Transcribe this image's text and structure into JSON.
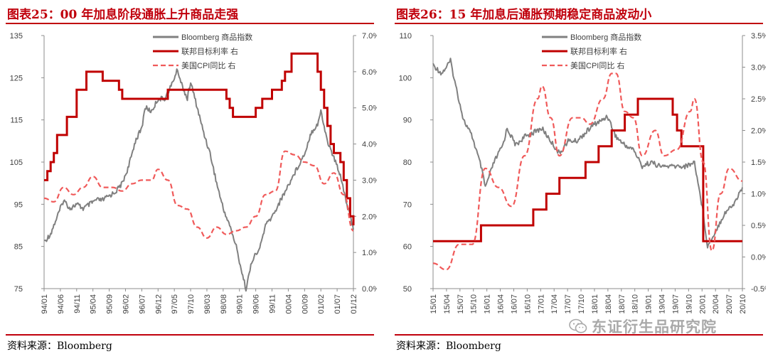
{
  "charts": {
    "left": {
      "title": "图表25：00 年加息阶段通胀上升商品走强",
      "source": "资料来源：Bloomberg"
    },
    "right": {
      "title": "图表26：15 年加息后通胀预期稳定商品波动小",
      "source": "资料来源：Bloomberg"
    }
  },
  "watermark": {
    "text": "东证衍生品研究院",
    "icon": "wechat-icon"
  },
  "colors": {
    "commodity": "#808080",
    "fed_rate": "#c00000",
    "cpi": "#f05a5a",
    "title": "#c0000c"
  },
  "chart_data": [
    {
      "type": "line",
      "title": "图表25：00 年加息阶段通胀上升商品走强",
      "legend_position": "top-center",
      "x_tick_labels": [
        "94/01",
        "94/06",
        "94/11",
        "95/04",
        "95/09",
        "96/02",
        "96/07",
        "96/12",
        "97/05",
        "97/10",
        "98/03",
        "98/08",
        "99/01",
        "99/06",
        "99/11",
        "00/04",
        "00/09",
        "01/02",
        "01/07",
        "01/12"
      ],
      "x_range": [
        "1994-01",
        "2001-12"
      ],
      "y_left": {
        "ticks": [
          "75",
          "85",
          "95",
          "105",
          "115",
          "125",
          "135"
        ],
        "range": [
          75,
          135
        ]
      },
      "y_right": {
        "ticks": [
          "0.0%",
          "1.0%",
          "2.0%",
          "3.0%",
          "4.0%",
          "5.0%",
          "6.0%",
          "7.0%"
        ],
        "range": [
          0,
          7
        ]
      },
      "series": [
        {
          "name": "Bloomberg 商品指数",
          "axis": "left",
          "style": "solid-gray",
          "points": [
            [
              "1994-01",
              86
            ],
            [
              "1994-03",
              88
            ],
            [
              "1994-05",
              92
            ],
            [
              "1994-07",
              96
            ],
            [
              "1994-09",
              94
            ],
            [
              "1994-11",
              95
            ],
            [
              "1995-01",
              94
            ],
            [
              "1995-03",
              95
            ],
            [
              "1995-05",
              96
            ],
            [
              "1995-07",
              96
            ],
            [
              "1995-09",
              97
            ],
            [
              "1995-11",
              98
            ],
            [
              "1996-01",
              100
            ],
            [
              "1996-03",
              104
            ],
            [
              "1996-05",
              110
            ],
            [
              "1996-07",
              113
            ],
            [
              "1996-08",
              118
            ],
            [
              "1996-10",
              117
            ],
            [
              "1996-12",
              120
            ],
            [
              "1997-02",
              120
            ],
            [
              "1997-04",
              123
            ],
            [
              "1997-06",
              127
            ],
            [
              "1997-07",
              124
            ],
            [
              "1997-09",
              120
            ],
            [
              "1997-10",
              124
            ],
            [
              "1997-12",
              118
            ],
            [
              "1998-02",
              112
            ],
            [
              "1998-04",
              107
            ],
            [
              "1998-06",
              100
            ],
            [
              "1998-08",
              94
            ],
            [
              "1998-10",
              90
            ],
            [
              "1998-12",
              85
            ],
            [
              "1999-02",
              78
            ],
            [
              "1999-03",
              75
            ],
            [
              "1999-05",
              82
            ],
            [
              "1999-07",
              84
            ],
            [
              "1999-09",
              90
            ],
            [
              "1999-11",
              92
            ],
            [
              "2000-01",
              95
            ],
            [
              "2000-03",
              98
            ],
            [
              "2000-05",
              101
            ],
            [
              "2000-07",
              104
            ],
            [
              "2000-09",
              107
            ],
            [
              "2000-11",
              112
            ],
            [
              "2001-01",
              114
            ],
            [
              "2001-02",
              117
            ],
            [
              "2001-04",
              110
            ],
            [
              "2001-06",
              106
            ],
            [
              "2001-08",
              102
            ],
            [
              "2001-10",
              95
            ],
            [
              "2001-12",
              89
            ]
          ]
        },
        {
          "name": "联邦目标利率 右",
          "axis": "right",
          "style": "solid-red",
          "step": true,
          "points": [
            [
              "1994-01",
              3.0
            ],
            [
              "1994-02",
              3.25
            ],
            [
              "1994-03",
              3.5
            ],
            [
              "1994-04",
              3.75
            ],
            [
              "1994-05",
              4.25
            ],
            [
              "1994-08",
              4.75
            ],
            [
              "1994-11",
              5.5
            ],
            [
              "1995-02",
              6.0
            ],
            [
              "1995-07",
              5.75
            ],
            [
              "1995-12",
              5.5
            ],
            [
              "1996-01",
              5.25
            ],
            [
              "1997-03",
              5.5
            ],
            [
              "1998-09",
              5.25
            ],
            [
              "1998-10",
              5.0
            ],
            [
              "1998-11",
              4.75
            ],
            [
              "1999-06",
              5.0
            ],
            [
              "1999-08",
              5.25
            ],
            [
              "1999-11",
              5.5
            ],
            [
              "2000-02",
              5.75
            ],
            [
              "2000-03",
              6.0
            ],
            [
              "2000-05",
              6.5
            ],
            [
              "2001-01",
              6.0
            ],
            [
              "2001-02",
              5.5
            ],
            [
              "2001-03",
              5.0
            ],
            [
              "2001-04",
              4.5
            ],
            [
              "2001-05",
              4.0
            ],
            [
              "2001-06",
              3.75
            ],
            [
              "2001-08",
              3.5
            ],
            [
              "2001-09",
              3.0
            ],
            [
              "2001-10",
              2.5
            ],
            [
              "2001-11",
              2.0
            ],
            [
              "2001-12",
              1.75
            ]
          ]
        },
        {
          "name": "美国CPI同比 右",
          "axis": "right",
          "style": "dashed-red",
          "points": [
            [
              "1994-01",
              2.5
            ],
            [
              "1994-04",
              2.4
            ],
            [
              "1994-07",
              2.8
            ],
            [
              "1994-10",
              2.6
            ],
            [
              "1995-01",
              2.8
            ],
            [
              "1995-04",
              3.1
            ],
            [
              "1995-07",
              2.8
            ],
            [
              "1995-10",
              2.8
            ],
            [
              "1996-01",
              2.7
            ],
            [
              "1996-04",
              2.9
            ],
            [
              "1996-07",
              3.0
            ],
            [
              "1996-10",
              3.0
            ],
            [
              "1996-12",
              3.3
            ],
            [
              "1997-03",
              3.0
            ],
            [
              "1997-06",
              2.3
            ],
            [
              "1997-09",
              2.2
            ],
            [
              "1997-12",
              1.7
            ],
            [
              "1998-03",
              1.4
            ],
            [
              "1998-06",
              1.7
            ],
            [
              "1998-09",
              1.5
            ],
            [
              "1998-12",
              1.6
            ],
            [
              "1999-03",
              1.7
            ],
            [
              "1999-06",
              2.0
            ],
            [
              "1999-09",
              2.6
            ],
            [
              "1999-12",
              2.7
            ],
            [
              "2000-03",
              3.8
            ],
            [
              "2000-06",
              3.7
            ],
            [
              "2000-09",
              3.5
            ],
            [
              "2000-12",
              3.4
            ],
            [
              "2001-03",
              2.9
            ],
            [
              "2001-06",
              3.2
            ],
            [
              "2001-09",
              2.6
            ],
            [
              "2001-12",
              1.6
            ]
          ]
        }
      ]
    },
    {
      "type": "line",
      "title": "图表26：15 年加息后通胀预期稳定商品波动小",
      "legend_position": "top-center",
      "x_tick_labels": [
        "15/01",
        "15/04",
        "15/07",
        "15/10",
        "16/01",
        "16/04",
        "16/07",
        "16/10",
        "17/01",
        "17/04",
        "17/07",
        "17/10",
        "18/01",
        "18/04",
        "18/07",
        "18/10",
        "19/01",
        "19/04",
        "19/07",
        "19/10",
        "20/01",
        "20/04",
        "20/07",
        "20/10"
      ],
      "x_range": [
        "2015-01",
        "2020-12"
      ],
      "y_left": {
        "ticks": [
          "50",
          "60",
          "70",
          "80",
          "90",
          "100",
          "110"
        ],
        "range": [
          50,
          110
        ]
      },
      "y_right": {
        "ticks": [
          "-0.5%",
          "0.0%",
          "0.5%",
          "1.0%",
          "1.5%",
          "2.0%",
          "2.5%",
          "3.0%",
          "3.5%"
        ],
        "range": [
          -0.5,
          3.5
        ]
      },
      "series": [
        {
          "name": "Bloomberg 商品指数",
          "axis": "left",
          "style": "solid-gray",
          "points": [
            [
              "2015-01",
              103
            ],
            [
              "2015-03",
              101
            ],
            [
              "2015-05",
              104
            ],
            [
              "2015-06",
              99
            ],
            [
              "2015-08",
              90
            ],
            [
              "2015-10",
              86
            ],
            [
              "2015-12",
              79
            ],
            [
              "2016-01",
              74
            ],
            [
              "2016-03",
              80
            ],
            [
              "2016-05",
              84
            ],
            [
              "2016-06",
              88
            ],
            [
              "2016-08",
              84
            ],
            [
              "2016-10",
              86
            ],
            [
              "2016-12",
              87
            ],
            [
              "2017-02",
              88
            ],
            [
              "2017-04",
              85
            ],
            [
              "2017-06",
              82
            ],
            [
              "2017-08",
              85
            ],
            [
              "2017-10",
              85
            ],
            [
              "2017-12",
              87
            ],
            [
              "2018-02",
              89
            ],
            [
              "2018-04",
              90
            ],
            [
              "2018-05",
              91
            ],
            [
              "2018-07",
              86
            ],
            [
              "2018-09",
              84
            ],
            [
              "2018-11",
              83
            ],
            [
              "2019-01",
              79
            ],
            [
              "2019-03",
              80
            ],
            [
              "2019-05",
              79
            ],
            [
              "2019-07",
              79
            ],
            [
              "2019-09",
              79
            ],
            [
              "2019-11",
              79
            ],
            [
              "2020-01",
              80
            ],
            [
              "2020-03",
              68
            ],
            [
              "2020-04",
              60
            ],
            [
              "2020-06",
              64
            ],
            [
              "2020-08",
              68
            ],
            [
              "2020-10",
              70
            ],
            [
              "2020-12",
              74
            ]
          ]
        },
        {
          "name": "联邦目标利率 右",
          "axis": "right",
          "style": "solid-red",
          "step": true,
          "points": [
            [
              "2015-01",
              0.25
            ],
            [
              "2015-12",
              0.5
            ],
            [
              "2016-12",
              0.75
            ],
            [
              "2017-03",
              1.0
            ],
            [
              "2017-06",
              1.25
            ],
            [
              "2017-12",
              1.5
            ],
            [
              "2018-03",
              1.75
            ],
            [
              "2018-06",
              2.0
            ],
            [
              "2018-09",
              2.25
            ],
            [
              "2018-12",
              2.5
            ],
            [
              "2019-08",
              2.25
            ],
            [
              "2019-09",
              2.0
            ],
            [
              "2019-10",
              1.75
            ],
            [
              "2020-03",
              0.25
            ],
            [
              "2020-12",
              0.25
            ]
          ]
        },
        {
          "name": "美国CPI同比 右",
          "axis": "right",
          "style": "dashed-red",
          "points": [
            [
              "2015-01",
              -0.1
            ],
            [
              "2015-04",
              -0.2
            ],
            [
              "2015-07",
              0.2
            ],
            [
              "2015-10",
              0.2
            ],
            [
              "2016-01",
              1.4
            ],
            [
              "2016-04",
              1.1
            ],
            [
              "2016-07",
              0.8
            ],
            [
              "2016-10",
              1.6
            ],
            [
              "2017-01",
              2.5
            ],
            [
              "2017-02",
              2.7
            ],
            [
              "2017-04",
              2.2
            ],
            [
              "2017-06",
              1.6
            ],
            [
              "2017-09",
              2.2
            ],
            [
              "2017-11",
              2.2
            ],
            [
              "2018-01",
              2.1
            ],
            [
              "2018-04",
              2.5
            ],
            [
              "2018-06",
              2.9
            ],
            [
              "2018-07",
              2.9
            ],
            [
              "2018-09",
              2.3
            ],
            [
              "2018-11",
              2.2
            ],
            [
              "2019-01",
              1.6
            ],
            [
              "2019-04",
              2.0
            ],
            [
              "2019-06",
              1.6
            ],
            [
              "2019-09",
              1.7
            ],
            [
              "2019-12",
              2.3
            ],
            [
              "2020-01",
              2.5
            ],
            [
              "2020-03",
              1.5
            ],
            [
              "2020-05",
              0.1
            ],
            [
              "2020-07",
              1.0
            ],
            [
              "2020-09",
              1.4
            ],
            [
              "2020-12",
              1.2
            ]
          ]
        }
      ]
    }
  ]
}
